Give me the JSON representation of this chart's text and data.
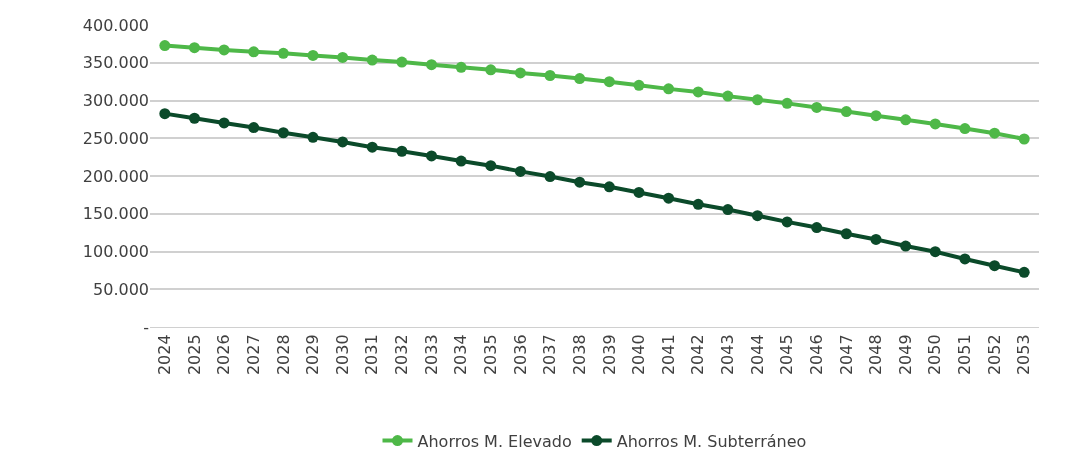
{
  "chart_data": {
    "type": "line",
    "categories": [
      "2024",
      "2025",
      "2026",
      "2027",
      "2028",
      "2029",
      "2030",
      "2031",
      "2032",
      "2033",
      "2034",
      "2035",
      "2036",
      "2037",
      "2038",
      "2039",
      "2040",
      "2041",
      "2042",
      "2043",
      "2044",
      "2045",
      "2046",
      "2047",
      "2048",
      "2049",
      "2050",
      "2051",
      "2052",
      "2053"
    ],
    "series": [
      {
        "name": "Ahorros M. Elevado",
        "color": "#4eb848",
        "values": [
          372700,
          370000,
          367000,
          364500,
          362500,
          359700,
          357000,
          353600,
          350900,
          347400,
          344000,
          340600,
          336500,
          333100,
          329000,
          324900,
          320100,
          315400,
          311300,
          305800,
          301000,
          296200,
          290800,
          285300,
          279900,
          274400,
          269000,
          262800,
          256700,
          249000
        ]
      },
      {
        "name": "Ahorros M. Subterráneo",
        "color": "#0b4a2a",
        "values": [
          282600,
          276500,
          270300,
          264200,
          257300,
          251200,
          245100,
          238200,
          232800,
          226600,
          219800,
          213700,
          206100,
          199300,
          191800,
          185700,
          178200,
          170600,
          162500,
          155600,
          147400,
          139200,
          131700,
          123500,
          116000,
          107200,
          99700,
          90100,
          81200,
          72400
        ]
      }
    ],
    "ylim": [
      0,
      400000
    ],
    "yticks": [
      {
        "value": 0,
        "label": "-"
      },
      {
        "value": 50000,
        "label": "50.000"
      },
      {
        "value": 100000,
        "label": "100.000"
      },
      {
        "value": 150000,
        "label": "150.000"
      },
      {
        "value": 200000,
        "label": "200.000"
      },
      {
        "value": 250000,
        "label": "250.000"
      },
      {
        "value": 300000,
        "label": "300.000"
      },
      {
        "value": 350000,
        "label": "350.000"
      },
      {
        "value": 400000,
        "label": "400.000"
      }
    ],
    "grid": "y",
    "legend": "bottom",
    "marker": "circle",
    "line_style": "solid"
  }
}
